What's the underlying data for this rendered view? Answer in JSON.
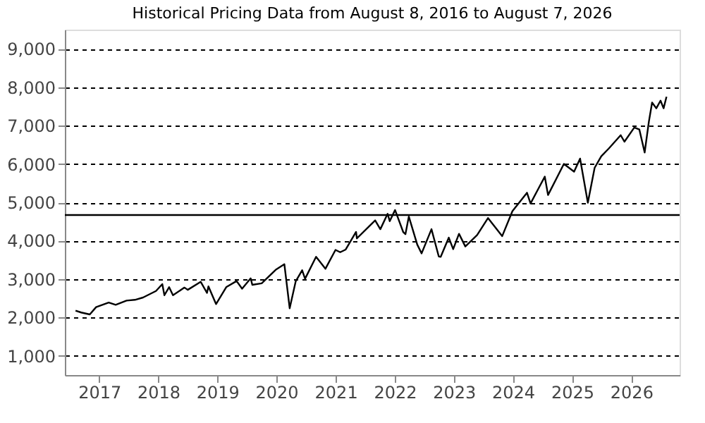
{
  "chart_data": {
    "type": "line",
    "title": "Historical Pricing Data from August 8, 2016 to August 7, 2026",
    "x": [
      "2016-08-08",
      "2016-09-12",
      "2016-11-04",
      "2016-12-13",
      "2017-03-01",
      "2017-04-13",
      "2017-06-19",
      "2017-08-10",
      "2017-09-29",
      "2017-12-18",
      "2018-01-26",
      "2018-02-08",
      "2018-03-09",
      "2018-04-02",
      "2018-06-12",
      "2018-07-02",
      "2018-09-20",
      "2018-10-29",
      "2018-11-07",
      "2018-12-24",
      "2019-02-25",
      "2019-04-30",
      "2019-06-03",
      "2019-07-26",
      "2019-08-05",
      "2019-10-02",
      "2019-12-27",
      "2020-02-19",
      "2020-03-23",
      "2020-04-29",
      "2020-06-08",
      "2020-06-26",
      "2020-09-02",
      "2020-10-30",
      "2020-12-31",
      "2021-01-29",
      "2021-03-04",
      "2021-05-07",
      "2021-05-12",
      "2021-09-02",
      "2021-10-04",
      "2021-11-18",
      "2021-12-01",
      "2022-01-03",
      "2022-02-23",
      "2022-03-08",
      "2022-03-29",
      "2022-05-20",
      "2022-06-16",
      "2022-08-16",
      "2022-09-30",
      "2022-10-12",
      "2022-12-01",
      "2022-12-28",
      "2023-02-02",
      "2023-03-13",
      "2023-05-25",
      "2023-07-31",
      "2023-10-27",
      "2023-12-29",
      "2024-03-28",
      "2024-04-19",
      "2024-07-16",
      "2024-08-05",
      "2024-11-11",
      "2025-01-13",
      "2025-02-19",
      "2025-04-08",
      "2025-05-20",
      "2025-06-30",
      "2025-08-15",
      "2025-10-28",
      "2025-11-20",
      "2026-01-20",
      "2026-02-20",
      "2026-03-25",
      "2026-04-20",
      "2026-05-10",
      "2026-06-05",
      "2026-07-01",
      "2026-07-20",
      "2026-08-07"
    ],
    "values": [
      2180,
      2130,
      2080,
      2270,
      2390,
      2330,
      2440,
      2460,
      2520,
      2690,
      2870,
      2580,
      2790,
      2580,
      2780,
      2720,
      2930,
      2640,
      2810,
      2350,
      2790,
      2950,
      2750,
      3020,
      2850,
      2890,
      3240,
      3390,
      2240,
      2940,
      3230,
      3010,
      3580,
      3270,
      3760,
      3700,
      3770,
      4230,
      4060,
      4530,
      4300,
      4700,
      4510,
      4800,
      4220,
      4170,
      4630,
      3900,
      3670,
      4300,
      3590,
      3580,
      4080,
      3780,
      4180,
      3850,
      4150,
      4590,
      4120,
      4770,
      5250,
      4970,
      5670,
      5190,
      6000,
      5800,
      6140,
      4990,
      5900,
      6200,
      6400,
      6750,
      6580,
      6950,
      6900,
      6300,
      7100,
      7600,
      7450,
      7650,
      7450,
      7750
    ],
    "color": "#000000",
    "xlim": [
      "2016-06-03",
      "2026-10-27"
    ],
    "xticks": [
      "2017",
      "2018",
      "2019",
      "2020",
      "2021",
      "2022",
      "2023",
      "2024",
      "2025",
      "2026"
    ],
    "ylim": [
      500,
      9500
    ],
    "yticks": [
      {
        "value": 1000,
        "label": "1,000"
      },
      {
        "value": 2000,
        "label": "2,000"
      },
      {
        "value": 3000,
        "label": "3,000"
      },
      {
        "value": 4000,
        "label": "4,000"
      },
      {
        "value": 5000,
        "label": "5,000"
      },
      {
        "value": 6000,
        "label": "6,000"
      },
      {
        "value": 7000,
        "label": "7,000"
      },
      {
        "value": 8000,
        "label": "8,000"
      },
      {
        "value": 9000,
        "label": "9,000"
      }
    ],
    "ref_lines": [
      {
        "axis": "y",
        "value": 4670,
        "color": "#000000",
        "line_style": "solid"
      }
    ],
    "grid": "y",
    "line_style": "solid",
    "marker": "none"
  }
}
